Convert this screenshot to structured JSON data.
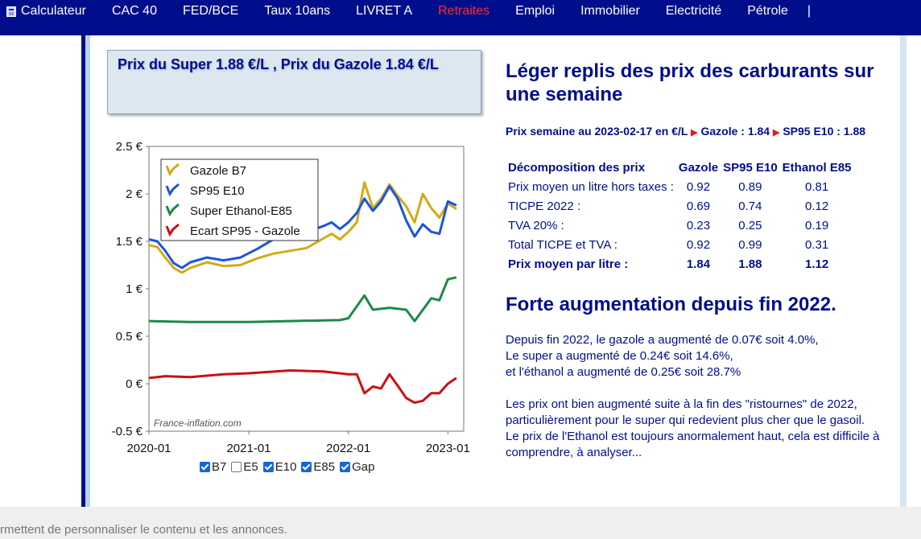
{
  "nav": {
    "items": [
      {
        "label": "Calculateur",
        "active": false
      },
      {
        "label": "CAC 40",
        "active": false
      },
      {
        "label": "FED/BCE",
        "active": false
      },
      {
        "label": "Taux 10ans",
        "active": false
      },
      {
        "label": "LIVRET A",
        "active": false
      },
      {
        "label": "Retraites",
        "active": true
      },
      {
        "label": "Emploi",
        "active": false
      },
      {
        "label": "Immobilier",
        "active": false
      },
      {
        "label": "Electricité",
        "active": false
      },
      {
        "label": "Pétrole",
        "active": false
      }
    ],
    "separator": "|"
  },
  "price_box": {
    "text": "Prix du Super 1.88 €/L ,   Prix du Gazole 1.84 €/L"
  },
  "chart_data": {
    "type": "line",
    "x_ticks": [
      "2020-01",
      "2021-01",
      "2022-01",
      "2023-01"
    ],
    "y_ticks": [
      "2.5 €",
      "2 €",
      "1.5 €",
      "1 €",
      "0.5 €",
      "0 €",
      "-0.5 €"
    ],
    "ylim": [
      -0.5,
      2.5
    ],
    "watermark": "France-inflation.com",
    "series": [
      {
        "name": "Gazole B7",
        "color": "#d4a917",
        "x": [
          "2020-01",
          "2020-02",
          "2020-03",
          "2020-04",
          "2020-05",
          "2020-06",
          "2020-08",
          "2020-10",
          "2020-12",
          "2021-02",
          "2021-04",
          "2021-06",
          "2021-08",
          "2021-10",
          "2021-11",
          "2021-12",
          "2022-01",
          "2022-02",
          "2022-03",
          "2022-04",
          "2022-05",
          "2022-06",
          "2022-07",
          "2022-08",
          "2022-09",
          "2022-10",
          "2022-11",
          "2022-12",
          "2023-01",
          "2023-02"
        ],
        "y": [
          1.46,
          1.44,
          1.33,
          1.22,
          1.17,
          1.22,
          1.28,
          1.24,
          1.25,
          1.32,
          1.37,
          1.4,
          1.43,
          1.53,
          1.58,
          1.52,
          1.6,
          1.7,
          2.12,
          1.85,
          1.95,
          2.1,
          1.98,
          1.87,
          1.7,
          2.0,
          1.85,
          1.75,
          1.9,
          1.84
        ]
      },
      {
        "name": "SP95 E10",
        "color": "#1a55e0",
        "x": [
          "2020-01",
          "2020-02",
          "2020-03",
          "2020-04",
          "2020-05",
          "2020-06",
          "2020-08",
          "2020-10",
          "2020-12",
          "2021-02",
          "2021-04",
          "2021-06",
          "2021-08",
          "2021-10",
          "2021-11",
          "2021-12",
          "2022-01",
          "2022-02",
          "2022-03",
          "2022-04",
          "2022-05",
          "2022-06",
          "2022-07",
          "2022-08",
          "2022-09",
          "2022-10",
          "2022-11",
          "2022-12",
          "2023-01",
          "2023-02"
        ],
        "y": [
          1.52,
          1.5,
          1.4,
          1.27,
          1.22,
          1.28,
          1.33,
          1.3,
          1.33,
          1.42,
          1.52,
          1.56,
          1.6,
          1.66,
          1.7,
          1.63,
          1.7,
          1.8,
          1.95,
          1.82,
          1.92,
          2.08,
          1.95,
          1.72,
          1.55,
          1.68,
          1.6,
          1.58,
          1.92,
          1.88
        ]
      },
      {
        "name": "Super Ethanol-E85",
        "color": "#1c8a48",
        "x": [
          "2020-01",
          "2020-06",
          "2021-01",
          "2021-06",
          "2021-12",
          "2022-01",
          "2022-03",
          "2022-04",
          "2022-06",
          "2022-08",
          "2022-09",
          "2022-11",
          "2022-12",
          "2023-01",
          "2023-02"
        ],
        "y": [
          0.66,
          0.65,
          0.65,
          0.66,
          0.67,
          0.69,
          0.93,
          0.78,
          0.8,
          0.78,
          0.66,
          0.9,
          0.88,
          1.1,
          1.12
        ]
      },
      {
        "name": "Ecart SP95 - Gazole",
        "color": "#cc1010",
        "x": [
          "2020-01",
          "2020-03",
          "2020-06",
          "2020-10",
          "2021-01",
          "2021-06",
          "2021-10",
          "2022-01",
          "2022-02",
          "2022-03",
          "2022-04",
          "2022-05",
          "2022-06",
          "2022-07",
          "2022-08",
          "2022-09",
          "2022-10",
          "2022-11",
          "2022-12",
          "2023-01",
          "2023-02"
        ],
        "y": [
          0.06,
          0.08,
          0.07,
          0.1,
          0.11,
          0.14,
          0.13,
          0.1,
          0.1,
          -0.1,
          -0.03,
          -0.05,
          0.1,
          -0.02,
          -0.15,
          -0.2,
          -0.18,
          -0.1,
          -0.1,
          0.0,
          0.06
        ]
      }
    ]
  },
  "toggles": [
    {
      "label": "B7",
      "checked": true
    },
    {
      "label": "E5",
      "checked": false
    },
    {
      "label": "E10",
      "checked": true
    },
    {
      "label": "E85",
      "checked": true
    },
    {
      "label": "Gap",
      "checked": true
    }
  ],
  "right": {
    "title": "Léger replis des prix des carburants sur une semaine",
    "week_prefix": "Prix semaine au 2023-02-17 en €/L",
    "week_gazole": "Gazole : 1.84",
    "week_sp95": "SP95 E10 : 1.88",
    "table": {
      "headers": [
        "Décomposition des prix",
        "Gazole",
        "SP95 E10",
        "Ethanol E85"
      ],
      "rows": [
        [
          "Prix moyen un litre hors taxes :",
          "0.92",
          "0.89",
          "0.81"
        ],
        [
          "TICPE 2022 :",
          "0.69",
          "0.74",
          "0.12"
        ],
        [
          "TVA 20% :",
          "0.23",
          "0.25",
          "0.19"
        ],
        [
          "Total TICPE et TVA :",
          "0.92",
          "0.99",
          "0.31"
        ],
        [
          "Prix moyen par litre :",
          "1.84",
          "1.88",
          "1.12"
        ]
      ]
    },
    "title2": "Forte augmentation depuis fin 2022.",
    "para1": [
      "Depuis fin 2022, le gazole a augmenté de 0.07€ soit 4.0%,",
      "Le super a augmenté de 0.24€ soit 14.6%,",
      "et l'éthanol a augmenté de 0.25€ soit 28.7%"
    ],
    "para2": [
      "Les prix ont bien augmenté suite à la fin des \"ristournes\" de 2022, particulièrement pour le super qui redevient plus cher que le gasoil.",
      "Le prix de l'Ethanol est toujours anormalement haut, cela est difficile à comprendre, à analyser..."
    ]
  },
  "cookie": {
    "text": "rmettent de personnaliser le contenu et les annonces."
  }
}
